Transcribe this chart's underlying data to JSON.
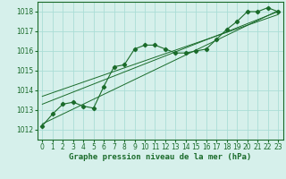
{
  "title": "Graphe pression niveau de la mer (hPa)",
  "bg_color": "#d6f0eb",
  "grid_color": "#aaddd6",
  "line_color": "#1a6b2a",
  "xlim": [
    -0.5,
    23.5
  ],
  "ylim": [
    1011.5,
    1018.5
  ],
  "yticks": [
    1012,
    1013,
    1014,
    1015,
    1016,
    1017,
    1018
  ],
  "xticks": [
    0,
    1,
    2,
    3,
    4,
    5,
    6,
    7,
    8,
    9,
    10,
    11,
    12,
    13,
    14,
    15,
    16,
    17,
    18,
    19,
    20,
    21,
    22,
    23
  ],
  "xtick_labels": [
    "0",
    "1",
    "2",
    "3",
    "4",
    "5",
    "6",
    "7",
    "8",
    "9",
    "10",
    "11",
    "12",
    "13",
    "14",
    "15",
    "16",
    "17",
    "18",
    "19",
    "20",
    "21",
    "22",
    "23"
  ],
  "pressure_data": [
    1012.2,
    1012.8,
    1013.3,
    1013.4,
    1013.2,
    1013.1,
    1014.2,
    1015.2,
    1015.3,
    1016.1,
    1016.3,
    1016.3,
    1016.1,
    1015.9,
    1015.9,
    1016.0,
    1016.1,
    1016.6,
    1017.1,
    1017.5,
    1018.0,
    1018.0,
    1018.2,
    1018.0
  ],
  "trend_lines": [
    {
      "x": [
        0,
        23
      ],
      "y": [
        1012.3,
        1018.05
      ]
    },
    {
      "x": [
        0,
        23
      ],
      "y": [
        1013.3,
        1018.0
      ]
    },
    {
      "x": [
        0,
        23
      ],
      "y": [
        1013.7,
        1017.85
      ]
    }
  ],
  "tick_fontsize": 5.5,
  "title_fontsize": 6.5
}
